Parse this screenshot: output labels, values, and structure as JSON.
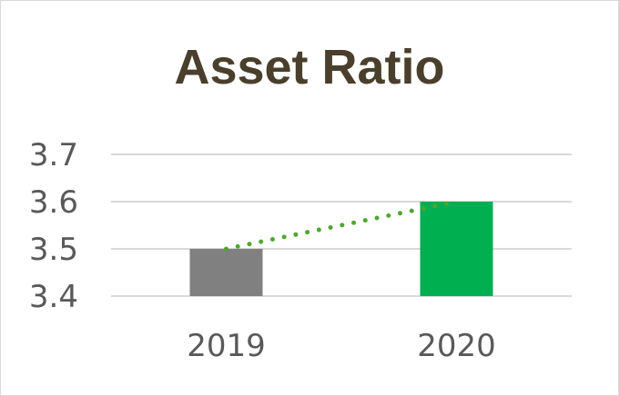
{
  "chart_data": {
    "type": "bar",
    "title": "Asset Ratio",
    "categories": [
      "2019",
      "2020"
    ],
    "values": [
      3.5,
      3.6
    ],
    "colors": [
      "#808080",
      "#00b050"
    ],
    "trendline": {
      "style": "dotted",
      "color": "#4ea72e"
    },
    "xlabel": "",
    "ylabel": "",
    "ylim": [
      3.4,
      3.7
    ],
    "yticks": [
      "3.4",
      "3.5",
      "3.6",
      "3.7"
    ],
    "grid": true,
    "legend": "none"
  }
}
